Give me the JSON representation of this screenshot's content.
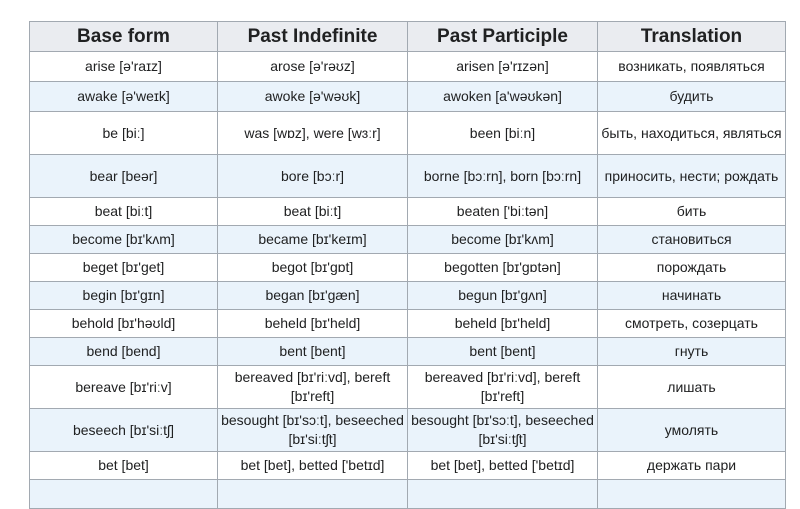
{
  "headers": [
    "Base form",
    "Past Indefinite",
    "Past Participle",
    "Translation"
  ],
  "rows": [
    [
      "arise [ə'raɪz]",
      "arose [ə'rəʊz]",
      "arisen [ə'rɪzən]",
      "возникать, появляться"
    ],
    [
      "awake [ə'weɪk]",
      "awoke [ə'wəʊk]",
      "awoken [a'wəʊkən]",
      "будить"
    ],
    [
      "be [biː]",
      "was [wɒz], were [wɜːr]",
      "been [biːn]",
      "быть, находиться, являться"
    ],
    [
      "bear [beər]",
      "bore [bɔːr]",
      "borne [bɔːrn], born [bɔːrn]",
      "приносить, нести; рождать"
    ],
    [
      "beat [biːt]",
      "beat [biːt]",
      "beaten ['biːtən]",
      "бить"
    ],
    [
      "become [bɪ'kʌm]",
      "became [bɪ'keɪm]",
      "become [bɪ'kʌm]",
      "становиться"
    ],
    [
      "beget [bɪ'get]",
      "begot [bɪ'gɒt]",
      "begotten [bɪ'gɒtən]",
      "порождать"
    ],
    [
      "begin [bɪ'gɪn]",
      "began [bɪ'gæn]",
      "begun [bɪ'gʌn]",
      "начинать"
    ],
    [
      "behold [bɪ'həʊld]",
      "beheld [bɪ'held]",
      "beheld [bɪ'held]",
      "смотреть, созерцать"
    ],
    [
      "bend [bend]",
      "bent [bent]",
      "bent [bent]",
      "гнуть"
    ],
    [
      "bereave [bɪ'riːv]",
      "bereaved [bɪ'riːvd], bereft [bɪ'reft]",
      "bereaved [bɪ'riːvd], bereft [bɪ'reft]",
      "лишать"
    ],
    [
      "beseech [bɪ'siːtʃ]",
      "besought [bɪ'sɔːt], beseeched [bɪ'siːtʃt]",
      "besought [bɪ'sɔːt], beseeched [bɪ'siːtʃt]",
      "умолять"
    ],
    [
      "bet [bet]",
      "bet [bet], betted ['betɪd]",
      "bet [bet], betted ['betɪd]",
      "держать пари"
    ]
  ],
  "colors": {
    "header_bg": "#eaecf0",
    "alt_row_bg": "#eaf3fb",
    "border": "#a2a9b1"
  }
}
